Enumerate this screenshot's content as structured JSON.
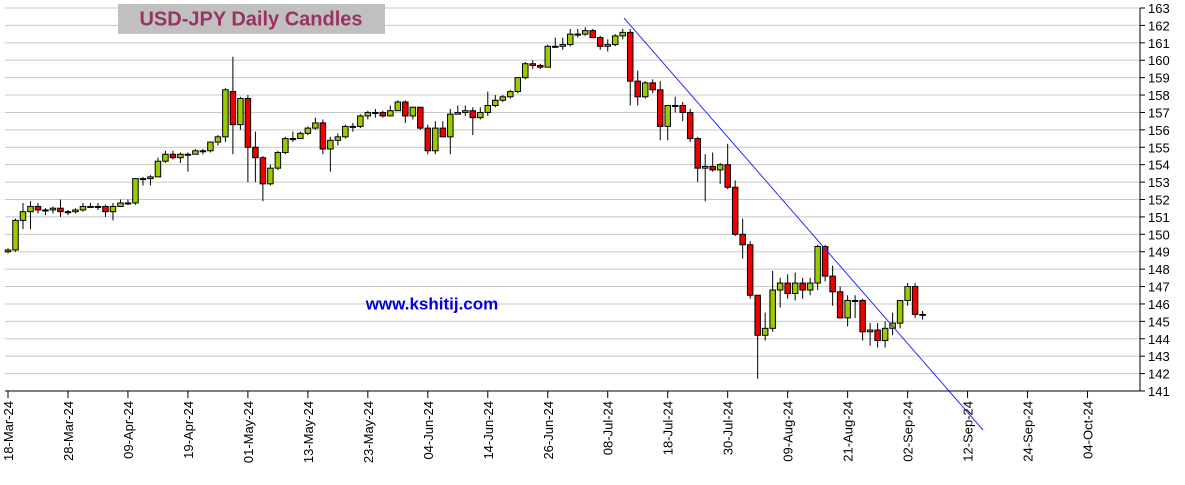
{
  "chart_data": {
    "type": "candlestick",
    "title": "USD-JPY Daily Candles",
    "annotation": "www.kshitij.com",
    "up_color": "#99cc00",
    "down_color": "#ee0000",
    "grid": true,
    "xlim": [
      -0.4,
      151
    ],
    "xticks": [
      {
        "value": 0,
        "label": "18-Mar-24"
      },
      {
        "value": 8,
        "label": "28-Mar-24"
      },
      {
        "value": 16,
        "label": "09-Apr-24"
      },
      {
        "value": 24,
        "label": "19-Apr-24"
      },
      {
        "value": 32,
        "label": "01-May-24"
      },
      {
        "value": 40,
        "label": "13-May-24"
      },
      {
        "value": 48,
        "label": "23-May-24"
      },
      {
        "value": 56,
        "label": "04-Jun-24"
      },
      {
        "value": 64,
        "label": "14-Jun-24"
      },
      {
        "value": 72,
        "label": "26-Jun-24"
      },
      {
        "value": 80,
        "label": "08-Jul-24"
      },
      {
        "value": 88,
        "label": "18-Jul-24"
      },
      {
        "value": 96,
        "label": "30-Jul-24"
      },
      {
        "value": 104,
        "label": "09-Aug-24"
      },
      {
        "value": 112,
        "label": "21-Aug-24"
      },
      {
        "value": 120,
        "label": "02-Sep-24"
      },
      {
        "value": 128,
        "label": "12-Sep-24"
      },
      {
        "value": 136,
        "label": "24-Sep-24"
      },
      {
        "value": 144,
        "label": "04-Oct-24"
      }
    ],
    "ylim": [
      141,
      163
    ],
    "yticks": [
      141,
      142,
      143,
      144,
      145,
      146,
      147,
      148,
      149,
      150,
      151,
      152,
      153,
      154,
      155,
      156,
      157,
      158,
      159,
      160,
      161,
      162,
      163
    ],
    "open": [
      149.0,
      149.1,
      150.8,
      151.3,
      151.6,
      151.4,
      151.4,
      151.5,
      151.3,
      151.3,
      151.4,
      151.6,
      151.6,
      151.6,
      151.3,
      151.6,
      151.8,
      151.8,
      153.2,
      153.2,
      153.3,
      154.2,
      154.6,
      154.4,
      154.6,
      154.6,
      154.8,
      154.8,
      155.3,
      155.6,
      158.2,
      156.3,
      157.8,
      155.0,
      154.4,
      152.9,
      153.8,
      154.7,
      155.5,
      155.5,
      155.8,
      156.1,
      156.4,
      154.9,
      155.4,
      155.6,
      156.2,
      156.2,
      156.8,
      157.0,
      157.0,
      156.8,
      157.1,
      157.6,
      156.8,
      157.3,
      156.1,
      154.8,
      156.1,
      155.6,
      156.9,
      157.0,
      157.1,
      156.7,
      157.0,
      157.4,
      157.7,
      157.9,
      158.2,
      159.0,
      159.8,
      159.7,
      159.6,
      160.8,
      160.8,
      160.9,
      161.5,
      161.5,
      161.7,
      161.3,
      160.8,
      160.9,
      161.4,
      161.6,
      158.8,
      157.9,
      158.7,
      158.3,
      156.2,
      157.4,
      157.4,
      157.0,
      155.5,
      153.8,
      153.9,
      153.7,
      154.0,
      152.7,
      150.0,
      149.4,
      146.5,
      144.2,
      144.6,
      146.8,
      147.2,
      146.6,
      147.2,
      146.8,
      147.2,
      149.3,
      147.6,
      146.7,
      145.2,
      146.2,
      146.2,
      144.4,
      144.5,
      143.9,
      144.6,
      144.9,
      146.2,
      147.0,
      145.4
    ],
    "high": [
      149.2,
      150.9,
      151.8,
      151.9,
      151.8,
      151.5,
      151.6,
      152.0,
      151.4,
      151.5,
      151.8,
      151.8,
      151.8,
      151.7,
      151.8,
      152.0,
      152.0,
      153.2,
      153.3,
      153.4,
      154.4,
      154.8,
      154.8,
      154.7,
      154.7,
      154.9,
      154.9,
      155.3,
      155.7,
      158.4,
      160.2,
      157.9,
      158.0,
      155.9,
      154.5,
      154.0,
      154.8,
      155.6,
      155.9,
      155.9,
      156.2,
      156.7,
      156.6,
      155.6,
      155.8,
      156.3,
      156.4,
      156.9,
      157.1,
      157.2,
      157.1,
      157.4,
      157.7,
      157.7,
      157.3,
      157.3,
      156.3,
      156.5,
      156.5,
      157.2,
      157.4,
      157.4,
      157.3,
      157.3,
      158.2,
      158.0,
      158.0,
      158.3,
      159.0,
      159.9,
      160.0,
      159.8,
      160.9,
      161.3,
      161.3,
      161.8,
      161.8,
      161.9,
      161.8,
      161.4,
      161.2,
      161.5,
      161.8,
      161.8,
      159.4,
      158.8,
      158.9,
      158.8,
      157.4,
      157.9,
      157.6,
      157.2,
      155.6,
      154.6,
      154.7,
      154.1,
      155.2,
      153.1,
      150.9,
      149.6,
      146.5,
      145.5,
      147.9,
      147.5,
      147.7,
      147.8,
      147.5,
      147.5,
      149.4,
      149.4,
      148.2,
      147.0,
      146.5,
      146.5,
      146.3,
      144.9,
      144.9,
      145.0,
      145.5,
      146.2,
      147.2,
      147.2,
      145.6
    ],
    "low": [
      148.9,
      149.0,
      150.3,
      150.3,
      151.2,
      151.1,
      151.2,
      151.0,
      151.1,
      151.2,
      151.3,
      151.5,
      151.4,
      151.0,
      150.8,
      151.6,
      151.7,
      151.7,
      152.8,
      152.8,
      153.3,
      154.1,
      154.3,
      154.1,
      153.6,
      154.6,
      154.6,
      154.7,
      155.1,
      155.3,
      154.6,
      156.0,
      153.0,
      153.0,
      151.9,
      152.8,
      153.7,
      154.6,
      155.3,
      155.5,
      155.7,
      156.0,
      154.6,
      153.6,
      155.1,
      155.5,
      155.9,
      156.1,
      156.6,
      156.7,
      156.7,
      156.8,
      157.1,
      156.4,
      156.6,
      156.0,
      154.6,
      154.6,
      155.6,
      154.6,
      156.9,
      156.8,
      155.7,
      156.6,
      156.8,
      157.3,
      157.6,
      157.8,
      158.1,
      158.9,
      159.5,
      159.5,
      159.6,
      160.7,
      160.6,
      160.8,
      161.3,
      161.4,
      161.3,
      160.6,
      160.5,
      160.8,
      161.2,
      157.4,
      157.4,
      157.8,
      158.1,
      155.4,
      155.4,
      157.0,
      156.5,
      155.3,
      153.0,
      151.9,
      153.6,
      152.9,
      152.6,
      149.9,
      148.6,
      146.3,
      141.7,
      143.9,
      144.4,
      145.8,
      146.3,
      146.2,
      146.3,
      146.5,
      146.8,
      147.3,
      145.9,
      145.2,
      144.7,
      145.2,
      143.9,
      143.6,
      143.5,
      143.5,
      144.2,
      144.6,
      145.9,
      145.2,
      145.1
    ],
    "close": [
      149.1,
      150.8,
      151.3,
      151.6,
      151.4,
      151.4,
      151.5,
      151.3,
      151.3,
      151.4,
      151.6,
      151.6,
      151.6,
      151.3,
      151.6,
      151.8,
      151.8,
      153.2,
      153.2,
      153.3,
      154.2,
      154.6,
      154.4,
      154.6,
      154.6,
      154.8,
      154.8,
      155.3,
      155.6,
      158.3,
      156.3,
      157.8,
      155.0,
      154.4,
      152.9,
      153.8,
      154.7,
      155.5,
      155.5,
      155.8,
      156.1,
      156.4,
      154.9,
      155.4,
      155.6,
      156.2,
      156.2,
      156.8,
      157.0,
      157.0,
      156.8,
      157.1,
      157.6,
      156.8,
      157.3,
      156.1,
      154.8,
      156.1,
      155.6,
      156.9,
      157.0,
      157.1,
      156.7,
      157.0,
      157.4,
      157.7,
      157.9,
      158.2,
      159.0,
      159.8,
      159.7,
      159.6,
      160.8,
      160.8,
      160.9,
      161.5,
      161.5,
      161.7,
      161.3,
      160.8,
      160.9,
      161.4,
      161.6,
      158.8,
      157.9,
      158.7,
      158.3,
      156.2,
      157.4,
      157.4,
      157.0,
      155.5,
      153.8,
      153.9,
      153.7,
      154.0,
      152.7,
      150.0,
      149.4,
      146.5,
      144.2,
      144.6,
      146.8,
      147.2,
      146.6,
      147.2,
      146.8,
      147.2,
      149.3,
      147.6,
      146.7,
      145.2,
      146.2,
      146.2,
      144.4,
      144.5,
      143.9,
      144.6,
      144.9,
      146.2,
      147.0,
      145.4,
      145.4
    ]
  }
}
